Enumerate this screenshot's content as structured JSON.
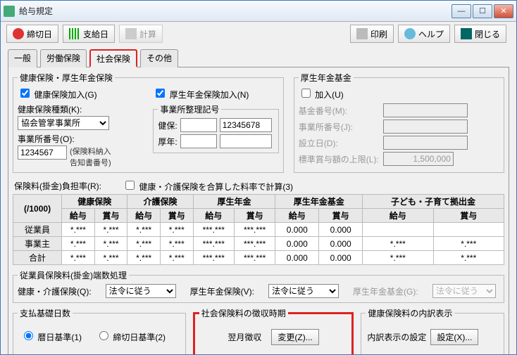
{
  "window": {
    "title": "給与規定"
  },
  "toolbar": {
    "deadline": "締切日",
    "payday": "支給日",
    "calc": "計算",
    "print": "印刷",
    "help": "ヘルプ",
    "close": "閉じる"
  },
  "tabs": {
    "general": "一般",
    "labor": "労働保険",
    "social": "社会保険",
    "other": "その他"
  },
  "health_pension": {
    "legend": "健康保険・厚生年金保険",
    "health_join": "健康保険加入(G)",
    "pension_join": "厚生年金保険加入(N)",
    "health_type_label": "健康保険種類(K):",
    "health_type_value": "協会管掌事業所",
    "office_no_label": "事業所番号(O):",
    "office_no_value": "1234567",
    "note1": "(保険料納入",
    "note2": "告知書番号)",
    "code_label": "事業所整理記号",
    "code1_label": "健保:",
    "code1a": "",
    "code1b": "12345678",
    "code2_label": "厚年:",
    "code2a": "",
    "code2b": ""
  },
  "fund": {
    "legend": "厚生年金基金",
    "join": "加入(U)",
    "fund_no_label": "基金番号(M):",
    "fund_no": "",
    "office_no_label": "事業所番号(J):",
    "office_no": "",
    "est_date_label": "設立日(D):",
    "est_date": "",
    "limit_label": "標準賞与額の上限(L):",
    "limit": "1,500,000"
  },
  "rates": {
    "title": "保険料(掛金)負担率(R):",
    "combine_label": "健康・介護保険を合算した料率で計算(3)",
    "unit": "(/1000)",
    "groups": [
      "健康保険",
      "介護保険",
      "厚生年金",
      "厚生年金基金",
      "子ども・子育て拠出金"
    ],
    "sub": [
      "給与",
      "賞与"
    ],
    "row_labels": [
      "従業員",
      "事業主",
      "合計"
    ],
    "rows": [
      [
        "*.***",
        "*.***",
        "*.***",
        "*.***",
        "***.***",
        "***.***",
        "0.000",
        "0.000",
        "",
        ""
      ],
      [
        "*.***",
        "*.***",
        "*.***",
        "*.***",
        "***.***",
        "***.***",
        "0.000",
        "0.000",
        "*.***",
        "*.***"
      ],
      [
        "*.***",
        "*.***",
        "*.***",
        "*.***",
        "***.***",
        "***.***",
        "0.000",
        "0.000",
        "*.***",
        "*.***"
      ]
    ]
  },
  "rounding": {
    "legend": "従業員保険料(掛金)端数処理",
    "health_label": "健康・介護保険(Q):",
    "health_value": "法令に従う",
    "pension_label": "厚生年金保険(V):",
    "pension_value": "法令に従う",
    "fund_label": "厚生年金基金(G):",
    "fund_value": "法令に従う"
  },
  "basis": {
    "legend": "支払基礎日数",
    "opt1": "暦日基準(1)",
    "opt2": "締切日基準(2)"
  },
  "collect": {
    "legend": "社会保険料の徴収時期",
    "value": "翌月徴収",
    "change": "変更(Z)..."
  },
  "breakdown": {
    "legend": "健康保険料の内訳表示",
    "label": "内訳表示の設定",
    "button": "設定(X)..."
  }
}
